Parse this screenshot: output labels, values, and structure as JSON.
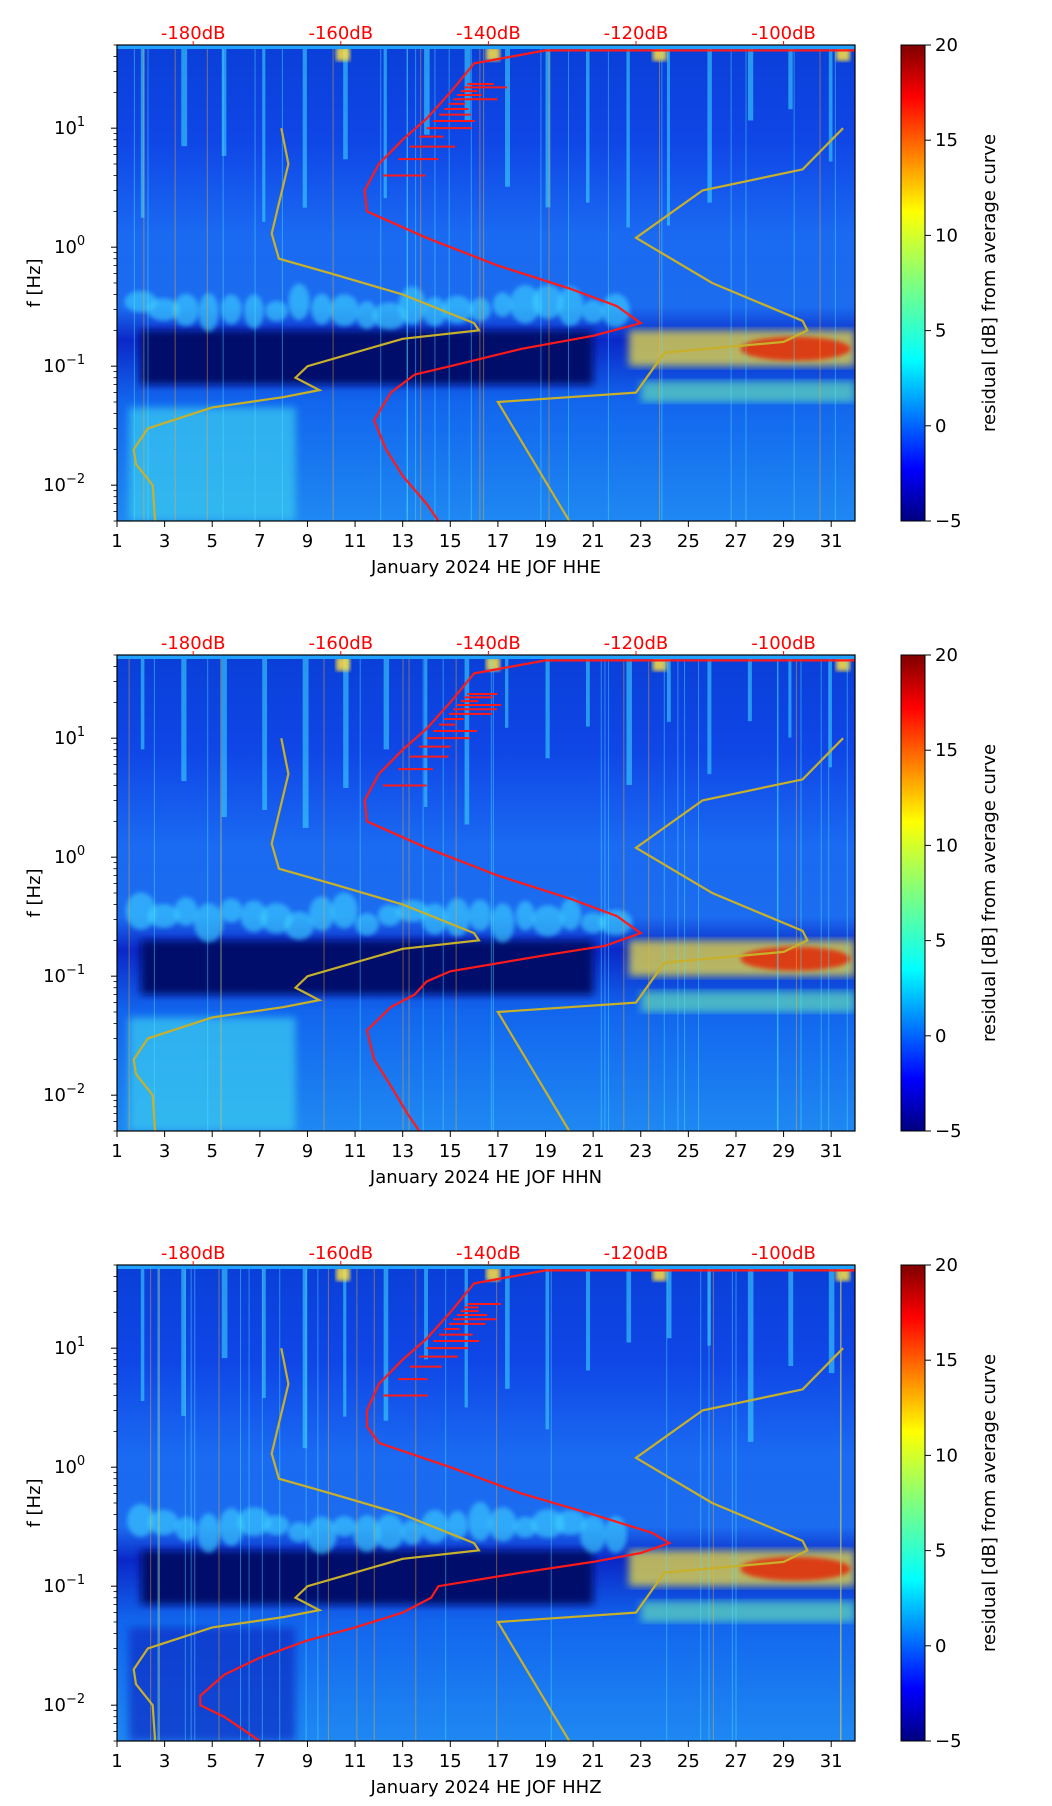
{
  "colors": {
    "colormap": [
      "#00007f",
      "#0000ff",
      "#007fff",
      "#00ffff",
      "#7fff7f",
      "#ffff00",
      "#ff7f00",
      "#ff0000",
      "#7f0000"
    ],
    "red_curve": "#ff1a1a",
    "gold_curve": "#c8b02a",
    "top_axis_text": "#ff0000"
  },
  "chart_data": [
    {
      "type": "heatmap",
      "title": "",
      "xlabel": "January 2024 HE JOF  HHE",
      "ylabel": "f [Hz]",
      "xlim": [
        1,
        32
      ],
      "ylim": [
        0.005,
        50
      ],
      "yscale": "log",
      "x_ticks": [
        "1",
        "3",
        "5",
        "7",
        "9",
        "11",
        "13",
        "15",
        "17",
        "19",
        "21",
        "23",
        "25",
        "27",
        "29",
        "31"
      ],
      "y_ticks": [
        {
          "value": 0.01,
          "base": "10",
          "exp": "−2"
        },
        {
          "value": 0.1,
          "base": "10",
          "exp": "−1"
        },
        {
          "value": 1,
          "base": "10",
          "exp": "0"
        },
        {
          "value": 10,
          "base": "10",
          "exp": "1"
        }
      ],
      "top_axis": {
        "labels": [
          "-180dB",
          "-160dB",
          "-140dB",
          "-120dB",
          "-100dB"
        ],
        "x_positions": [
          4.2,
          10.4,
          16.6,
          22.8,
          29.0
        ]
      },
      "colorbar": {
        "label": "residual [dB] from average curve",
        "range": [
          -5,
          20
        ],
        "ticks": [
          "−5",
          "0",
          "5",
          "10",
          "15",
          "20"
        ]
      },
      "series": [
        {
          "name": "average PSD curve",
          "color": "red",
          "points": [
            [
              14.5,
              0.005
            ],
            [
              14.0,
              0.007
            ],
            [
              13.0,
              0.012
            ],
            [
              12.3,
              0.02
            ],
            [
              11.8,
              0.035
            ],
            [
              12.5,
              0.06
            ],
            [
              13.5,
              0.085
            ],
            [
              15,
              0.1
            ],
            [
              18,
              0.14
            ],
            [
              21,
              0.18
            ],
            [
              23,
              0.23
            ],
            [
              22,
              0.32
            ],
            [
              20,
              0.45
            ],
            [
              17,
              0.7
            ],
            [
              14,
              1.2
            ],
            [
              11.5,
              2.0
            ],
            [
              11.4,
              3
            ],
            [
              12,
              5
            ],
            [
              13,
              8
            ],
            [
              14,
              12
            ],
            [
              15,
              20
            ],
            [
              16,
              35
            ],
            [
              19,
              45
            ],
            [
              32,
              45
            ]
          ]
        },
        {
          "name": "NHNM",
          "color": "gold",
          "points": [
            [
              2.6,
              0.005
            ],
            [
              2.5,
              0.01
            ],
            [
              1.8,
              0.015
            ],
            [
              1.7,
              0.02
            ],
            [
              2.3,
              0.03
            ],
            [
              5,
              0.045
            ],
            [
              8,
              0.055
            ],
            [
              9.5,
              0.063
            ],
            [
              8.5,
              0.08
            ],
            [
              9,
              0.1
            ],
            [
              13,
              0.17
            ],
            [
              16.2,
              0.2
            ],
            [
              16,
              0.23
            ],
            [
              13,
              0.4
            ],
            [
              10,
              0.6
            ],
            [
              7.8,
              0.8
            ],
            [
              7.5,
              1.3
            ],
            [
              8.2,
              5
            ],
            [
              7.9,
              10
            ]
          ]
        },
        {
          "name": "NLNM",
          "color": "gold",
          "points": [
            [
              20,
              0.005
            ],
            [
              17,
              0.05
            ],
            [
              22.8,
              0.06
            ],
            [
              24,
              0.13
            ],
            [
              29,
              0.16
            ],
            [
              30,
              0.2
            ],
            [
              29.8,
              0.24
            ],
            [
              26,
              0.5
            ],
            [
              22.8,
              1.2
            ],
            [
              25.6,
              3
            ],
            [
              29.8,
              4.5
            ],
            [
              31.5,
              10
            ]
          ]
        }
      ]
    },
    {
      "type": "heatmap",
      "title": "",
      "xlabel": "January 2024 HE JOF  HHN",
      "ylabel": "f [Hz]",
      "xlim": [
        1,
        32
      ],
      "ylim": [
        0.005,
        50
      ],
      "yscale": "log",
      "x_ticks": [
        "1",
        "3",
        "5",
        "7",
        "9",
        "11",
        "13",
        "15",
        "17",
        "19",
        "21",
        "23",
        "25",
        "27",
        "29",
        "31"
      ],
      "y_ticks": [
        {
          "value": 0.01,
          "base": "10",
          "exp": "−2"
        },
        {
          "value": 0.1,
          "base": "10",
          "exp": "−1"
        },
        {
          "value": 1,
          "base": "10",
          "exp": "0"
        },
        {
          "value": 10,
          "base": "10",
          "exp": "1"
        }
      ],
      "top_axis": {
        "labels": [
          "-180dB",
          "-160dB",
          "-140dB",
          "-120dB",
          "-100dB"
        ],
        "x_positions": [
          4.2,
          10.4,
          16.6,
          22.8,
          29.0
        ]
      },
      "colorbar": {
        "label": "residual [dB] from average curve",
        "range": [
          -5,
          20
        ],
        "ticks": [
          "−5",
          "0",
          "5",
          "10",
          "15",
          "20"
        ]
      },
      "series": [
        {
          "name": "average PSD curve",
          "color": "red",
          "points": [
            [
              13.7,
              0.005
            ],
            [
              13.2,
              0.007
            ],
            [
              12.5,
              0.012
            ],
            [
              11.8,
              0.02
            ],
            [
              11.5,
              0.035
            ],
            [
              12.5,
              0.055
            ],
            [
              13.5,
              0.07
            ],
            [
              14,
              0.09
            ],
            [
              15,
              0.11
            ],
            [
              19,
              0.15
            ],
            [
              21.5,
              0.18
            ],
            [
              23,
              0.23
            ],
            [
              22,
              0.32
            ],
            [
              20,
              0.45
            ],
            [
              17,
              0.7
            ],
            [
              14,
              1.2
            ],
            [
              11.5,
              2.0
            ],
            [
              11.4,
              3
            ],
            [
              12,
              5
            ],
            [
              13,
              8
            ],
            [
              14,
              12
            ],
            [
              15,
              20
            ],
            [
              16,
              35
            ],
            [
              19,
              45
            ],
            [
              32,
              45
            ]
          ]
        },
        {
          "name": "NHNM",
          "color": "gold",
          "points": [
            [
              2.6,
              0.005
            ],
            [
              2.5,
              0.01
            ],
            [
              1.8,
              0.015
            ],
            [
              1.7,
              0.02
            ],
            [
              2.3,
              0.03
            ],
            [
              5,
              0.045
            ],
            [
              8,
              0.055
            ],
            [
              9.5,
              0.063
            ],
            [
              8.5,
              0.08
            ],
            [
              9,
              0.1
            ],
            [
              13,
              0.17
            ],
            [
              16.2,
              0.2
            ],
            [
              16,
              0.23
            ],
            [
              13,
              0.4
            ],
            [
              10,
              0.6
            ],
            [
              7.8,
              0.8
            ],
            [
              7.5,
              1.3
            ],
            [
              8.2,
              5
            ],
            [
              7.9,
              10
            ]
          ]
        },
        {
          "name": "NLNM",
          "color": "gold",
          "points": [
            [
              20,
              0.005
            ],
            [
              17,
              0.05
            ],
            [
              22.8,
              0.06
            ],
            [
              24,
              0.13
            ],
            [
              29,
              0.16
            ],
            [
              30,
              0.2
            ],
            [
              29.8,
              0.24
            ],
            [
              26,
              0.5
            ],
            [
              22.8,
              1.2
            ],
            [
              25.6,
              3
            ],
            [
              29.8,
              4.5
            ],
            [
              31.5,
              10
            ]
          ]
        }
      ]
    },
    {
      "type": "heatmap",
      "title": "",
      "xlabel": "January 2024 HE JOF  HHZ",
      "ylabel": "f [Hz]",
      "xlim": [
        1,
        32
      ],
      "ylim": [
        0.005,
        50
      ],
      "yscale": "log",
      "x_ticks": [
        "1",
        "3",
        "5",
        "7",
        "9",
        "11",
        "13",
        "15",
        "17",
        "19",
        "21",
        "23",
        "25",
        "27",
        "29",
        "31"
      ],
      "y_ticks": [
        {
          "value": 0.01,
          "base": "10",
          "exp": "−2"
        },
        {
          "value": 0.1,
          "base": "10",
          "exp": "−1"
        },
        {
          "value": 1,
          "base": "10",
          "exp": "0"
        },
        {
          "value": 10,
          "base": "10",
          "exp": "1"
        }
      ],
      "top_axis": {
        "labels": [
          "-180dB",
          "-160dB",
          "-140dB",
          "-120dB",
          "-100dB"
        ],
        "x_positions": [
          4.2,
          10.4,
          16.6,
          22.8,
          29.0
        ]
      },
      "colorbar": {
        "label": "residual [dB] from average curve",
        "range": [
          -5,
          20
        ],
        "ticks": [
          "−5",
          "0",
          "5",
          "10",
          "15",
          "20"
        ]
      },
      "series": [
        {
          "name": "average PSD curve",
          "color": "red",
          "points": [
            [
              7,
              0.005
            ],
            [
              5.5,
              0.008
            ],
            [
              4.5,
              0.01
            ],
            [
              4.5,
              0.012
            ],
            [
              5.5,
              0.018
            ],
            [
              7,
              0.025
            ],
            [
              9,
              0.035
            ],
            [
              11,
              0.045
            ],
            [
              13,
              0.06
            ],
            [
              14.2,
              0.08
            ],
            [
              14.5,
              0.1
            ],
            [
              18,
              0.13
            ],
            [
              21,
              0.16
            ],
            [
              23,
              0.19
            ],
            [
              24.2,
              0.23
            ],
            [
              23.5,
              0.28
            ],
            [
              21,
              0.4
            ],
            [
              18,
              0.6
            ],
            [
              15,
              1.0
            ],
            [
              12,
              1.6
            ],
            [
              11.5,
              2.2
            ],
            [
              11.5,
              3
            ],
            [
              12,
              5
            ],
            [
              13,
              8
            ],
            [
              14,
              12
            ],
            [
              15,
              20
            ],
            [
              16,
              35
            ],
            [
              19,
              45
            ],
            [
              32,
              45
            ]
          ]
        },
        {
          "name": "NHNM",
          "color": "gold",
          "points": [
            [
              2.6,
              0.005
            ],
            [
              2.5,
              0.01
            ],
            [
              1.8,
              0.015
            ],
            [
              1.7,
              0.02
            ],
            [
              2.3,
              0.03
            ],
            [
              5,
              0.045
            ],
            [
              8,
              0.055
            ],
            [
              9.5,
              0.063
            ],
            [
              8.5,
              0.08
            ],
            [
              9,
              0.1
            ],
            [
              13,
              0.17
            ],
            [
              16.2,
              0.2
            ],
            [
              16,
              0.23
            ],
            [
              13,
              0.4
            ],
            [
              10,
              0.6
            ],
            [
              7.8,
              0.8
            ],
            [
              7.5,
              1.3
            ],
            [
              8.2,
              5
            ],
            [
              7.9,
              10
            ]
          ]
        },
        {
          "name": "NLNM",
          "color": "gold",
          "points": [
            [
              20,
              0.005
            ],
            [
              17,
              0.05
            ],
            [
              22.8,
              0.06
            ],
            [
              24,
              0.13
            ],
            [
              29,
              0.16
            ],
            [
              30,
              0.2
            ],
            [
              29.8,
              0.24
            ],
            [
              26,
              0.5
            ],
            [
              22.8,
              1.2
            ],
            [
              25.6,
              3
            ],
            [
              29.8,
              4.5
            ],
            [
              31.5,
              10
            ]
          ]
        }
      ]
    }
  ]
}
